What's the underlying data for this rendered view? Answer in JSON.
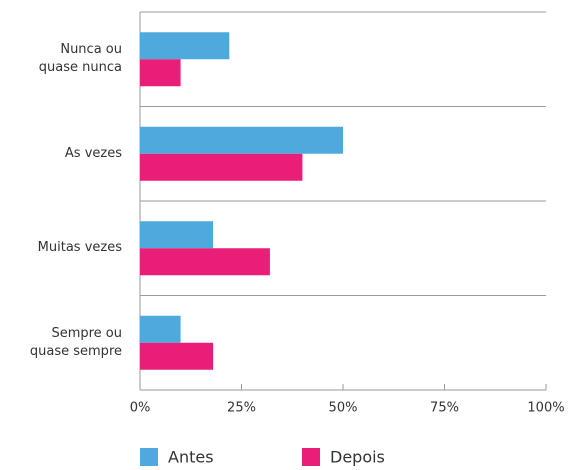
{
  "chart_data": {
    "type": "hbar",
    "categories": [
      "Nunca ou\nquase nunca",
      "As vezes",
      "Muitas vezes",
      "Sempre ou\nquase sempre"
    ],
    "series": [
      {
        "name": "Antes",
        "color": "#4eaadc",
        "values": [
          22,
          50,
          18,
          10
        ]
      },
      {
        "name": "Depois",
        "color": "#e91e78",
        "values": [
          10,
          40,
          32,
          18
        ]
      }
    ],
    "xlim": [
      0,
      100
    ],
    "xticks": [
      {
        "value": 0,
        "label": "0%"
      },
      {
        "value": 25,
        "label": "25%"
      },
      {
        "value": 50,
        "label": "50%"
      },
      {
        "value": 75,
        "label": "75%"
      },
      {
        "value": 100,
        "label": "100%"
      }
    ],
    "legend": "bottom"
  }
}
